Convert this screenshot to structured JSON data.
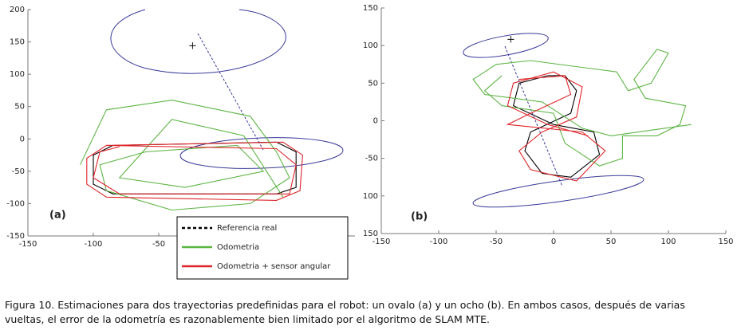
{
  "chart_data": [
    {
      "type": "line",
      "panel_label": "(a)",
      "xlim": [
        -150,
        100
      ],
      "ylim": [
        -150,
        200
      ],
      "xticks": [
        -150,
        -100,
        -50
      ],
      "yticks": [
        -150,
        -100,
        -50,
        0,
        50,
        100,
        150,
        200
      ],
      "series": [
        {
          "name": "Referencia real",
          "color": "#000000",
          "dash": true,
          "x": [
            -85,
            40,
            55,
            55,
            40,
            -85,
            -100,
            -100,
            -85
          ],
          "values": [
            -10,
            -5,
            -20,
            -75,
            -85,
            -85,
            -70,
            -25,
            -10
          ]
        },
        {
          "name": "Odometria",
          "color": "#5db544",
          "x": [
            -110,
            -90,
            -40,
            20,
            40,
            50,
            20,
            -40,
            -90,
            -95,
            -60,
            10,
            30,
            -30,
            -80,
            -40,
            15,
            45
          ],
          "values": [
            -40,
            45,
            60,
            35,
            -20,
            -60,
            -100,
            -110,
            -80,
            -40,
            -20,
            -10,
            -50,
            -75,
            -60,
            30,
            5,
            -90
          ]
        },
        {
          "name": "Odometria + sensor angular",
          "color": "#e0252a",
          "x": [
            -90,
            45,
            60,
            58,
            40,
            -90,
            -105,
            -105,
            -90,
            40,
            55,
            50,
            -80,
            -100,
            -95,
            -80
          ],
          "values": [
            -10,
            -5,
            -25,
            -80,
            -95,
            -90,
            -70,
            -30,
            -10,
            -15,
            -40,
            -85,
            -85,
            -60,
            -20,
            -12
          ]
        }
      ]
    },
    {
      "type": "line",
      "panel_label": "(b)",
      "xlim": [
        -150,
        150
      ],
      "ylim": [
        -150,
        150
      ],
      "xticks": [
        -150,
        -100,
        -50,
        0,
        50,
        100,
        150
      ],
      "yticks": [
        {
          "value": -150,
          "label": "150"
        },
        {
          "value": -100,
          "label": "100"
        },
        -50,
        0,
        50,
        100,
        150
      ],
      "series": [
        {
          "color": "#000000",
          "x": [
            -5,
            -30,
            -35,
            0,
            35,
            40,
            15,
            -10,
            -25,
            -20,
            15,
            20,
            10,
            -5
          ],
          "values": [
            60,
            50,
            20,
            -5,
            -15,
            -45,
            -75,
            -70,
            -40,
            -15,
            10,
            40,
            60,
            60
          ]
        },
        {
          "color": "#5db544",
          "x": [
            -45,
            -60,
            -45,
            0,
            10,
            40,
            60,
            60,
            90,
            110,
            115,
            80,
            70,
            90,
            100,
            85,
            65,
            55,
            30,
            -20,
            -50,
            -70,
            -60,
            -10,
            25,
            50,
            120
          ],
          "values": [
            60,
            40,
            20,
            10,
            -30,
            -60,
            -50,
            -20,
            -20,
            -5,
            20,
            30,
            55,
            95,
            90,
            50,
            40,
            65,
            70,
            80,
            75,
            55,
            35,
            25,
            -10,
            -20,
            -5
          ]
        },
        {
          "color": "#e0252a",
          "x": [
            -30,
            10,
            15,
            -20,
            -40,
            25,
            45,
            20,
            -20,
            -30,
            -10,
            20,
            25,
            0,
            -35,
            -40,
            -5,
            30
          ],
          "values": [
            55,
            60,
            35,
            10,
            -5,
            -15,
            -40,
            -80,
            -65,
            -40,
            -15,
            5,
            45,
            65,
            50,
            20,
            -5,
            -20
          ]
        }
      ]
    }
  ],
  "caption": [
    "Figura 10. Estimaciones para dos trayectorias predefinidas para el robot: un ovalo (a) y un ocho (b). En ambos casos, después de varias",
    "vueltas, el error de la odometría es razonablemente bien limitado por el algoritmo de SLAM MTE."
  ]
}
